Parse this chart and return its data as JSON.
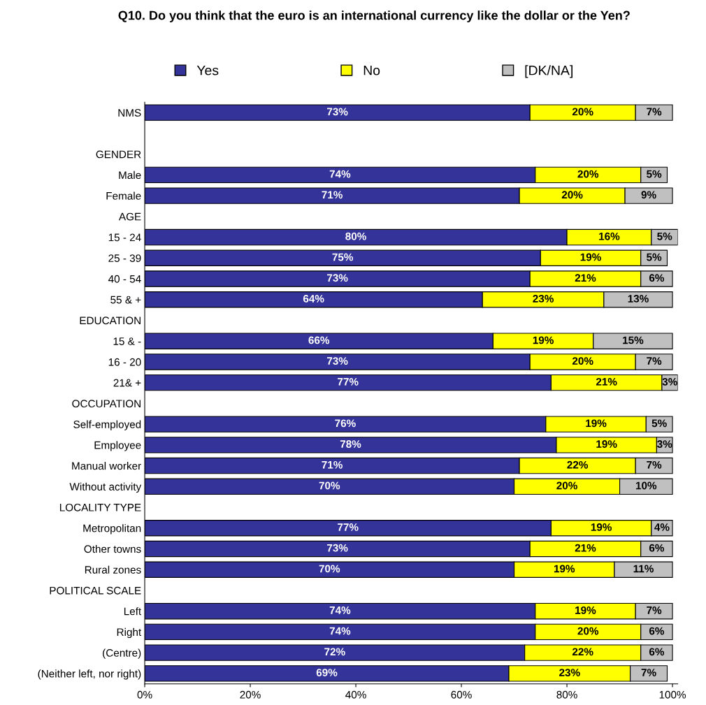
{
  "chart_data": {
    "type": "bar",
    "orientation": "horizontal",
    "stacked": true,
    "title": "Q10. Do you think that the euro is an international currency like the dollar or the Yen?",
    "categories": [
      "NMS",
      null,
      "GENDER",
      "Male",
      "Female",
      "AGE",
      "15 - 24",
      "25 - 39",
      "40 - 54",
      "55 & +",
      "EDUCATION",
      "15 & -",
      "16 - 20",
      "21& +",
      "OCCUPATION",
      "Self-employed",
      "Employee",
      "Manual worker",
      "Without activity",
      "LOCALITY TYPE",
      "Metropolitan",
      "Other towns",
      "Rural zones",
      "POLITICAL SCALE",
      "Left",
      "Right",
      "(Centre)",
      "(Neither left, nor right)"
    ],
    "series": [
      {
        "name": "Yes",
        "color": "#333399",
        "values": [
          73,
          null,
          null,
          74,
          71,
          null,
          80,
          75,
          73,
          64,
          null,
          66,
          73,
          77,
          null,
          76,
          78,
          71,
          70,
          null,
          77,
          73,
          70,
          null,
          74,
          74,
          72,
          69
        ],
        "value_labels": [
          "73%",
          null,
          null,
          "74%",
          "71%",
          null,
          "80%",
          "75%",
          "73%",
          "64%",
          null,
          "66%",
          "73%",
          "77%",
          null,
          "76%",
          "78%",
          "71%",
          "70%",
          null,
          "77%",
          "73%",
          "70%",
          null,
          "74%",
          "74%",
          "72%",
          "69%"
        ]
      },
      {
        "name": "No",
        "color": "#ffff00",
        "values": [
          20,
          null,
          null,
          20,
          20,
          null,
          16,
          19,
          21,
          23,
          null,
          19,
          20,
          21,
          null,
          19,
          19,
          22,
          20,
          null,
          19,
          21,
          19,
          null,
          19,
          20,
          22,
          23
        ],
        "value_labels": [
          "20%",
          null,
          null,
          "20%",
          "20%",
          null,
          "16%",
          "19%",
          "21%",
          "23%",
          null,
          "19%",
          "20%",
          "21%",
          null,
          "19%",
          "19%",
          "22%",
          "20%",
          null,
          "19%",
          "21%",
          "19%",
          null,
          "19%",
          "20%",
          "22%",
          "23%"
        ]
      },
      {
        "name": "[DK/NA]",
        "color": "#c0c0c0",
        "values": [
          7,
          null,
          null,
          5,
          9,
          null,
          5,
          5,
          6,
          13,
          null,
          15,
          7,
          3,
          null,
          5,
          3,
          7,
          10,
          null,
          4,
          6,
          11,
          null,
          7,
          6,
          6,
          7
        ],
        "value_labels": [
          "7%",
          null,
          null,
          "5%",
          "9%",
          null,
          "5%",
          "5%",
          "6%",
          "13%",
          null,
          "15%",
          "7%",
          "3%",
          null,
          "5%",
          "3%",
          "7%",
          "10%",
          null,
          "4%",
          "6%",
          "11%",
          null,
          "7%",
          "6%",
          "6%",
          "7%"
        ]
      }
    ],
    "xlim": [
      0,
      101
    ],
    "xticks": [
      {
        "value": 0,
        "label": "0%"
      },
      {
        "value": 20,
        "label": "20%"
      },
      {
        "value": 40,
        "label": "40%"
      },
      {
        "value": 60,
        "label": "60%"
      },
      {
        "value": 80,
        "label": "80%"
      },
      {
        "value": 100,
        "label": "100%"
      }
    ],
    "grid": false,
    "legend": "top"
  }
}
